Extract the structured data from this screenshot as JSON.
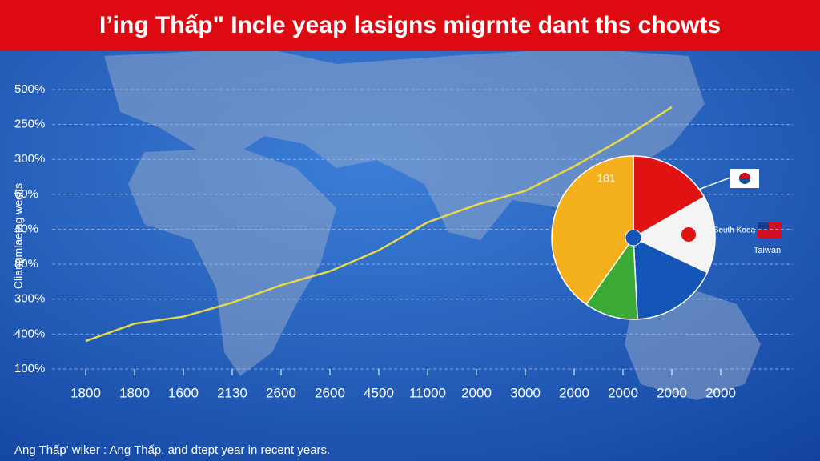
{
  "chart_data": [
    {
      "type": "line",
      "title": "I’ing Thấp\" Incle yeap lasigns migrnte dant ths chowts",
      "y_label": "Cliangmlaetag wecits",
      "footer": "Ang Thấp' wiker : Ang Thấp, and dtept year in recent years.",
      "categories": [
        "1800",
        "1800",
        "1600",
        "2130",
        "2600",
        "2600",
        "4500",
        "11000",
        "2000",
        "3000",
        "2000",
        "2000",
        "2000",
        "2000"
      ],
      "series": [
        {
          "color": "#e6d84a",
          "values": [
            0.8,
            1.3,
            1.5,
            1.9,
            2.4,
            2.8,
            3.4,
            4.2,
            4.7,
            5.1,
            5.8,
            6.6,
            7.5,
            null
          ]
        }
      ],
      "ylim": [
        0,
        8
      ],
      "yticks": [
        {
          "value": 0,
          "label": "100%"
        },
        {
          "value": 1,
          "label": "400%"
        },
        {
          "value": 2,
          "label": "300%"
        },
        {
          "value": 3,
          "label": "80%"
        },
        {
          "value": 4,
          "label": "40%"
        },
        {
          "value": 5,
          "label": "60%"
        },
        {
          "value": 6,
          "label": "300%"
        },
        {
          "value": 7,
          "label": "250%"
        },
        {
          "value": 8,
          "label": "500%"
        }
      ],
      "grid": true
    },
    {
      "type": "pie",
      "annotation": "181",
      "labels": [
        "South Koea",
        "Taiwan"
      ],
      "categories": [
        null,
        null,
        null,
        null,
        null
      ],
      "values": [
        16.7,
        15.3,
        17.2,
        10.6,
        40.2
      ],
      "colors": [
        "#e01212",
        "#f4f4f4",
        "#1456b8",
        "#3aaa35",
        "#f5b01e"
      ]
    }
  ]
}
